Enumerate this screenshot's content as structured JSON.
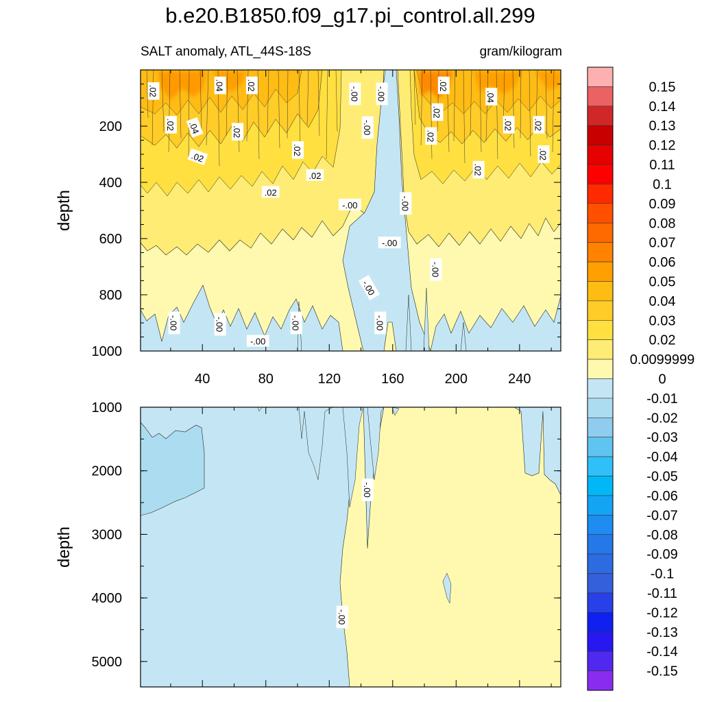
{
  "chart_data": [
    {
      "type": "heatmap",
      "panel": "upper",
      "title": "b.e20.B1850.f09_g17.pi_control.all.299",
      "subtitle_left": "SALT anomaly, ATL_44S-18S",
      "subtitle_right": "gram/kilogram",
      "xlabel": "",
      "ylabel": "depth",
      "xlim": [
        1,
        266
      ],
      "ylim": [
        1000,
        0
      ],
      "x_ticks": [
        40,
        80,
        120,
        160,
        200,
        240
      ],
      "x_tick_labels": [
        "40",
        "80",
        "120",
        "160",
        "200",
        "240"
      ],
      "y_ticks": [
        200,
        400,
        600,
        800,
        1000
      ],
      "y_tick_labels": [
        "200",
        "400",
        "600",
        "800",
        "1000"
      ],
      "contour_labels": [
        {
          "text": ".02",
          "x": 9,
          "depth": 75,
          "rot": 90
        },
        {
          "text": ".04",
          "x": 51,
          "depth": 55,
          "rot": 90
        },
        {
          "text": ".02",
          "x": 71,
          "depth": 55,
          "rot": 90
        },
        {
          "text": ".02",
          "x": 20,
          "depth": 195,
          "rot": 90
        },
        {
          "text": ".04",
          "x": 35,
          "depth": 205,
          "rot": 70
        },
        {
          "text": ".02",
          "x": 62,
          "depth": 220,
          "rot": 90
        },
        {
          "text": ".02",
          "x": 37,
          "depth": 310,
          "rot": 20
        },
        {
          "text": ".02",
          "x": 100,
          "depth": 285,
          "rot": 90
        },
        {
          "text": ".02",
          "x": 111,
          "depth": 375,
          "rot": 0
        },
        {
          "text": ".02",
          "x": 83,
          "depth": 435,
          "rot": 0
        },
        {
          "text": "-.00",
          "x": 136,
          "depth": 85,
          "rot": 90
        },
        {
          "text": "-.00",
          "x": 153,
          "depth": 85,
          "rot": 90
        },
        {
          "text": "-.00",
          "x": 144,
          "depth": 205,
          "rot": 90
        },
        {
          "text": ".02",
          "x": 192,
          "depth": 55,
          "rot": 90
        },
        {
          "text": ".04",
          "x": 222,
          "depth": 95,
          "rot": 90
        },
        {
          "text": ".02",
          "x": 188,
          "depth": 150,
          "rot": 90
        },
        {
          "text": ".02",
          "x": 233,
          "depth": 195,
          "rot": 90
        },
        {
          "text": ".02",
          "x": 252,
          "depth": 195,
          "rot": 90
        },
        {
          "text": ".02",
          "x": 184,
          "depth": 235,
          "rot": 90
        },
        {
          "text": ".02",
          "x": 255,
          "depth": 300,
          "rot": 90
        },
        {
          "text": ".02",
          "x": 214,
          "depth": 355,
          "rot": 90
        },
        {
          "text": "-.00",
          "x": 168,
          "depth": 475,
          "rot": 90
        },
        {
          "text": "-.00",
          "x": 133,
          "depth": 480,
          "rot": 0
        },
        {
          "text": "-.00",
          "x": 158,
          "depth": 615,
          "rot": 0
        },
        {
          "text": "-.00",
          "x": 187,
          "depth": 710,
          "rot": 90
        },
        {
          "text": "-.00",
          "x": 145,
          "depth": 775,
          "rot": 60
        },
        {
          "text": "-.00",
          "x": 22,
          "depth": 900,
          "rot": 90
        },
        {
          "text": "-.00",
          "x": 51,
          "depth": 905,
          "rot": 90
        },
        {
          "text": "-.00",
          "x": 99,
          "depth": 900,
          "rot": 90
        },
        {
          "text": "-.00",
          "x": 152,
          "depth": 900,
          "rot": 90
        },
        {
          "text": "-.00",
          "x": 75,
          "depth": 965,
          "rot": 0
        }
      ]
    },
    {
      "type": "heatmap",
      "panel": "lower",
      "xlabel": "",
      "ylabel": "depth",
      "xlim": [
        1,
        266
      ],
      "ylim": [
        5400,
        1000
      ],
      "y_ticks": [
        1000,
        2000,
        3000,
        4000,
        5000
      ],
      "y_tick_labels": [
        "1000",
        "2000",
        "3000",
        "4000",
        "5000"
      ],
      "contour_labels": [
        {
          "text": "-.00",
          "x": 144,
          "depth": 2300,
          "rot": 90
        },
        {
          "text": "-.00",
          "x": 128,
          "depth": 4300,
          "rot": 90
        }
      ]
    },
    {
      "type": "colorbar",
      "levels": [
        "0.15",
        "0.14",
        "0.13",
        "0.12",
        "0.11",
        "0.1",
        "0.09",
        "0.08",
        "0.07",
        "0.06",
        "0.05",
        "0.04",
        "0.03",
        "0.02",
        "0.0099999",
        "0",
        "-0.01",
        "-0.02",
        "-0.03",
        "-0.04",
        "-0.05",
        "-0.06",
        "-0.07",
        "-0.08",
        "-0.09",
        "-0.1",
        "-0.11",
        "-0.12",
        "-0.13",
        "-0.14",
        "-0.15"
      ],
      "colors": [
        "#fdb0b0",
        "#ea6262",
        "#d02828",
        "#c80000",
        "#e60000",
        "#ff0000",
        "#ff2a00",
        "#ff5000",
        "#ff6a00",
        "#ff8200",
        "#ffa000",
        "#ffbc14",
        "#ffcc28",
        "#ffe040",
        "#ffec74",
        "#fff9b0",
        "#c4e6f4",
        "#acdcf0",
        "#90ccee",
        "#60c4f0",
        "#30c0f8",
        "#00b8f8",
        "#14a4f4",
        "#1e8cf0",
        "#2478e8",
        "#2c6ce0",
        "#3460dc",
        "#2840e8",
        "#1020f0",
        "#2818f0",
        "#5028f0",
        "#8a2cf0"
      ]
    }
  ],
  "colors": {
    "upper_deep_fill": "#fff9b0",
    "negative_fill": "#c4e6f4",
    "negative_dark_fill": "#acdcf0",
    "band_02": "#ffec74",
    "band_03": "#ffe040",
    "band_04": "#ffcc28",
    "band_05": "#ffbc14",
    "band_06": "#ff8200"
  }
}
